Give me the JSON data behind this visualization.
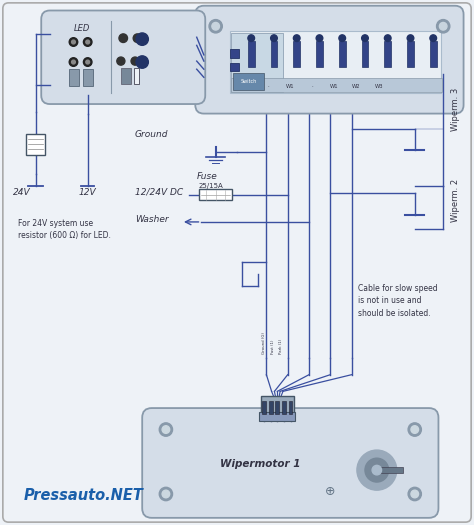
{
  "background_color": "#eef2f7",
  "border_color": "#999999",
  "wire_color": "#3a4fa0",
  "component_fill": "#dde8f2",
  "component_stroke": "#6688aa",
  "text_color": "#333344",
  "blue_text_color": "#1a5faa",
  "watermark": "Pressauto.NET",
  "labels": {
    "led": "LED",
    "24v": "24V",
    "12v": "12V",
    "ground": "Ground",
    "fuse": "Fuse",
    "fuse_val": "25/15A",
    "dc": "12/24V DC",
    "washer": "Washer",
    "wipermotor": "Wipermotor 1",
    "wiperm3": "Wiperm. 3",
    "wiperm2": "Wiperm. 2",
    "note": "Cable for slow speed\nis not in use and\nshould be isolated.",
    "note2": "For 24V system use\nresistor (600 Ω) for LED."
  }
}
